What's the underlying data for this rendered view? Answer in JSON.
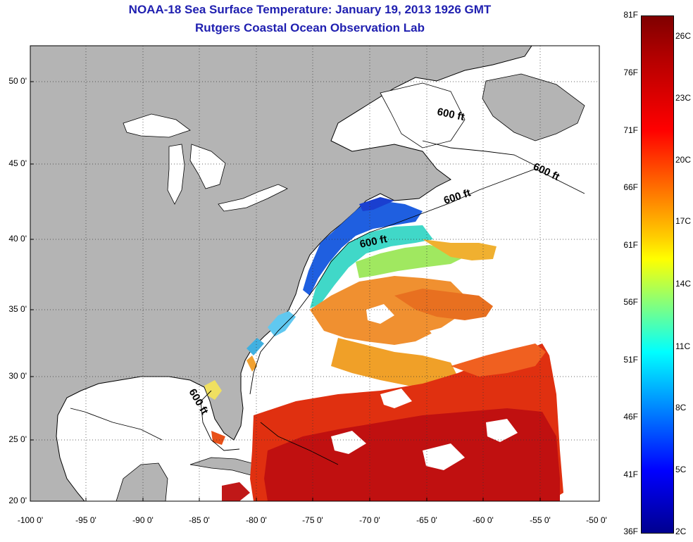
{
  "title": "NOAA-18 Sea Surface Temperature:  January 19, 2013 1926 GMT",
  "subtitle": "Rutgers Coastal Ocean Observation Lab",
  "latitude_labels": [
    "50 0'",
    "45 0'",
    "40 0'",
    "35 0'",
    "30 0'",
    "25 0'",
    "20 0'"
  ],
  "longitude_labels": [
    "-100 0'",
    "-95 0'",
    "-90 0'",
    "-85 0'",
    "-80 0'",
    "-75 0'",
    "-70 0'",
    "-65 0'",
    "-60 0'",
    "-55 0'",
    "-50 0'"
  ],
  "depth_contour_labels": [
    "600 ft",
    "600 ft",
    "600 ft",
    "600 ft",
    "600 ft"
  ],
  "colorbar": {
    "fahrenheit_labels": [
      "81F",
      "76F",
      "71F",
      "66F",
      "61F",
      "56F",
      "51F",
      "46F",
      "41F",
      "36F"
    ],
    "celsius_labels": [
      "26C",
      "23C",
      "20C",
      "17C",
      "14C",
      "11C",
      "8C",
      "5C",
      "2C"
    ]
  },
  "colors": {
    "title_text": "#1f1fb0",
    "land": "#b4b4b4",
    "ocean_no_data": "#ffffff",
    "cold": "#00008f",
    "warm": "#7f0000"
  }
}
